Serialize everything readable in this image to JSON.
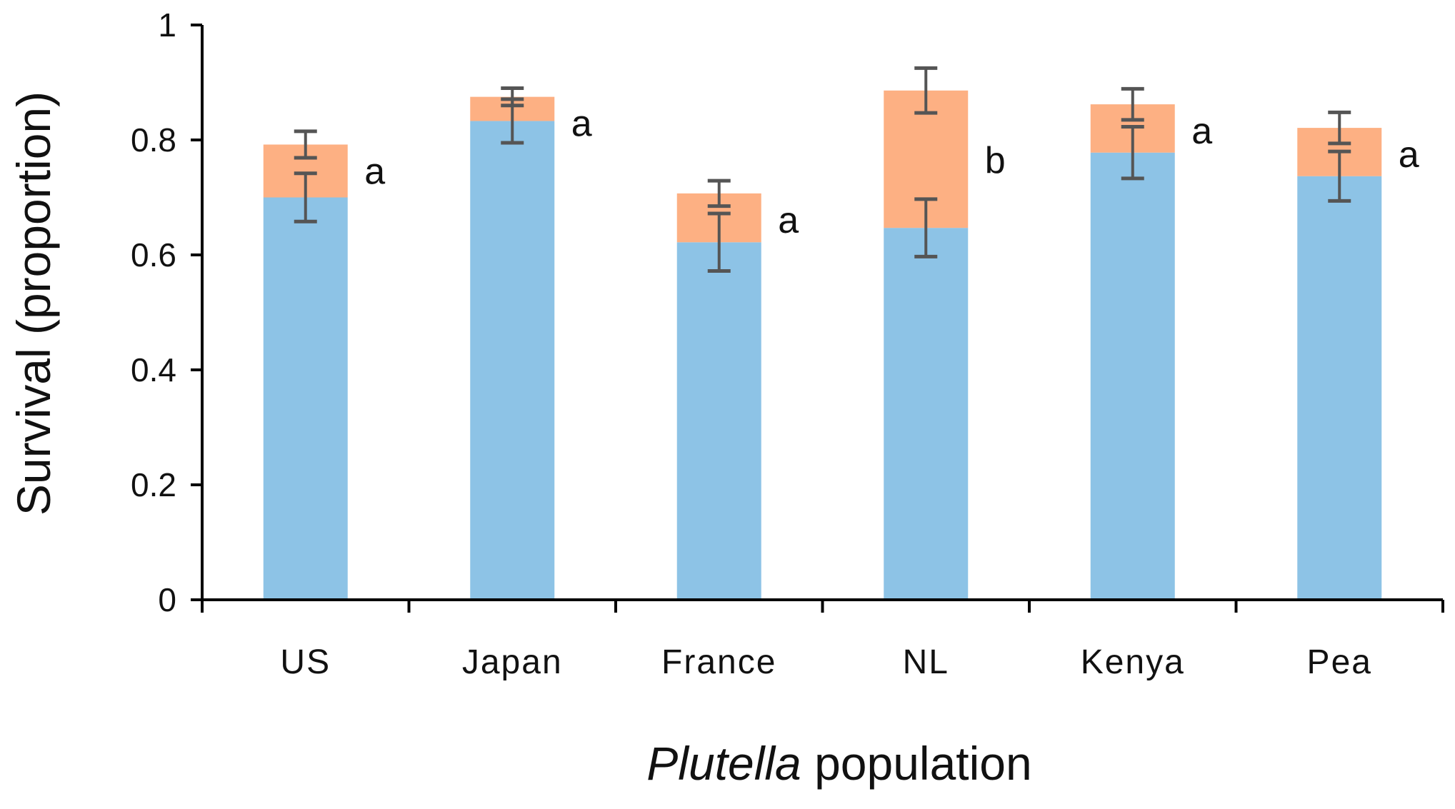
{
  "chart_data": {
    "type": "bar",
    "stacked": true,
    "title": "",
    "xlabel": {
      "italic": "Plutella",
      "rest": " population"
    },
    "ylabel": "Survival (proportion)",
    "ylim": [
      0,
      1
    ],
    "yticks": [
      {
        "value": 0,
        "label": "0"
      },
      {
        "value": 0.2,
        "label": "0.2"
      },
      {
        "value": 0.4,
        "label": "0.4"
      },
      {
        "value": 0.6,
        "label": "0.6"
      },
      {
        "value": 0.8,
        "label": "0.8"
      },
      {
        "value": 1,
        "label": "1"
      }
    ],
    "categories": [
      "US",
      "Japan",
      "France",
      "NL",
      "Kenya",
      "Pea"
    ],
    "series": [
      {
        "name": "lower segment",
        "color": "#8dc3e6",
        "values": [
          0.7,
          0.833,
          0.622,
          0.647,
          0.778,
          0.737
        ],
        "error": [
          0.042,
          0.038,
          0.05,
          0.05,
          0.045,
          0.043
        ]
      },
      {
        "name": "upper segment",
        "color": "#fdb083",
        "values": [
          0.092,
          0.042,
          0.085,
          0.239,
          0.084,
          0.084
        ],
        "error": [
          0.023,
          0.015,
          0.022,
          0.039,
          0.027,
          0.027
        ]
      }
    ],
    "totals": [
      0.792,
      0.875,
      0.707,
      0.886,
      0.862,
      0.821
    ],
    "significance": [
      "a",
      "a",
      "a",
      "b",
      "a",
      "a"
    ],
    "error_bar_color": "#555555",
    "axis_color": "#000000"
  }
}
